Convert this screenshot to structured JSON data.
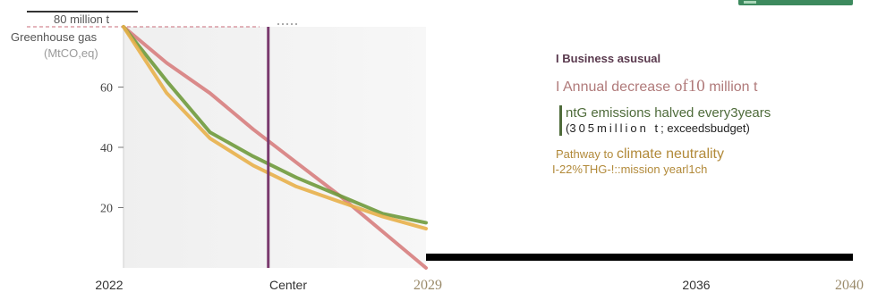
{
  "chart_data": {
    "type": "line",
    "ylabel_value": "80 million t",
    "ylabel": "Greenhouse gas",
    "yunit": "(MtCO,eq)",
    "ylim": [
      0,
      80
    ],
    "xlim": [
      2022,
      2029
    ],
    "x_tick_labels": [
      "2022",
      "Center",
      "2029",
      "2036",
      "2040"
    ],
    "y_ticks": [
      20,
      40,
      60
    ],
    "series": [
      {
        "name": "Annual decrease of10 million t",
        "color": "#d77e7e",
        "x": [
          2022,
          2023,
          2024,
          2025,
          2026,
          2027,
          2028,
          2029
        ],
        "y": [
          80,
          68,
          58,
          46,
          35,
          24,
          12,
          0
        ]
      },
      {
        "name": "ntG emissions halved every3years",
        "color": "#6f9a3c",
        "x": [
          2022,
          2023,
          2024,
          2025,
          2026,
          2027,
          2028,
          2029
        ],
        "y": [
          80,
          62,
          45,
          37,
          30,
          24,
          18,
          15
        ]
      },
      {
        "name": "Pathway to climate neutrality",
        "color": "#e8b04a",
        "x": [
          2022,
          2023,
          2024,
          2025,
          2026,
          2027,
          2028,
          2029
        ],
        "y": [
          80,
          58,
          43,
          34,
          27,
          22,
          17,
          13
        ]
      }
    ],
    "vertical_marker": {
      "label": "Center",
      "x": 2025.35,
      "color": "#7a3a6e"
    },
    "grid": false
  },
  "legend": {
    "item1": {
      "prefix": "I",
      "strong": "Business",
      "rest": "asusual"
    },
    "item2": {
      "text": "I Annual decrease o",
      "serif": "f10",
      "rest": "million t"
    },
    "item3": {
      "text": "ntG emissions halved every3years",
      "sub_open": "(",
      "sub_spaced": "305million t",
      "sub_rest": "; exceedsbudget)"
    },
    "item4": {
      "small": "Pathway",
      "mid": " to ",
      "big": "climate neutrality",
      "line2": "I-22%THG-!::mission yearl1ch"
    }
  }
}
